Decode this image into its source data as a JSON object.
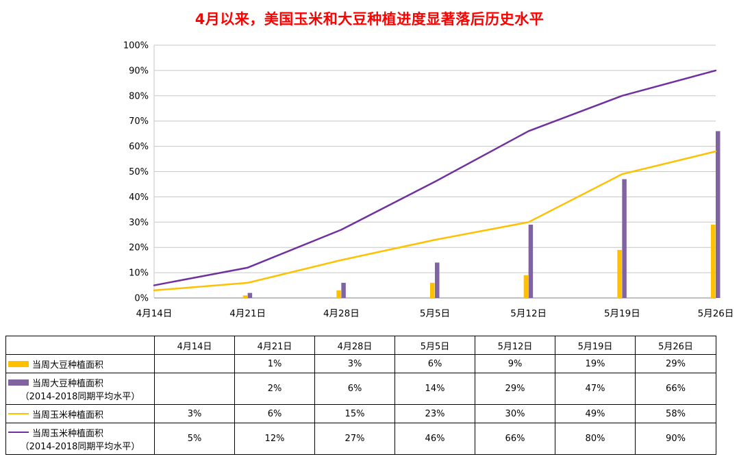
{
  "title": {
    "text": "4月以来，美国玉米和大豆种植进度显著落后历史水平",
    "color": "#FF0000"
  },
  "chart_data": {
    "type": "bar",
    "subtype": "combo-bar-line",
    "categories": [
      "4月14日",
      "4月21日",
      "4月28日",
      "5月5日",
      "5月12日",
      "5月19日",
      "5月26日"
    ],
    "ylim": [
      0,
      100
    ],
    "y_tick_labels": [
      "0%",
      "10%",
      "20%",
      "30%",
      "40%",
      "50%",
      "60%",
      "70%",
      "80%",
      "90%",
      "100%"
    ],
    "grid": true,
    "legend_position": "table-below",
    "series": [
      {
        "name": "当周大豆种植面积",
        "chart_type": "bar",
        "color": "#FFC000",
        "values": [
          null,
          1,
          3,
          6,
          9,
          19,
          29
        ]
      },
      {
        "name": "当周大豆种植面积（2014-2018同期平均水平）",
        "chart_type": "bar",
        "color": "#8064A2",
        "values": [
          null,
          2,
          6,
          14,
          29,
          47,
          66
        ]
      },
      {
        "name": "当周玉米种植面积",
        "chart_type": "line",
        "color": "#FFC000",
        "values": [
          3,
          6,
          15,
          23,
          30,
          49,
          58
        ]
      },
      {
        "name": "当周玉米种植面积（2014-2018同期平均水平）",
        "chart_type": "line",
        "color": "#7030A0",
        "values": [
          5,
          12,
          27,
          46,
          66,
          80,
          90
        ]
      }
    ],
    "colors": {
      "gold": "#FFC000",
      "purple_bar": "#8064A2",
      "purple_line": "#7030A0"
    }
  },
  "table": {
    "header": [
      "",
      "4月14日",
      "4月21日",
      "4月28日",
      "5月5日",
      "5月12日",
      "5月19日",
      "5月26日"
    ],
    "rows": [
      {
        "swatch": "bar",
        "color": "#FFC000",
        "label1": "当周大豆种植面积",
        "label2": "",
        "cells": [
          "",
          "1%",
          "3%",
          "6%",
          "9%",
          "19%",
          "29%"
        ]
      },
      {
        "swatch": "bar",
        "color": "#8064A2",
        "label1": "当周大豆种植面积",
        "label2": "（2014-2018同期平均水平）",
        "cells": [
          "",
          "2%",
          "6%",
          "14%",
          "29%",
          "47%",
          "66%"
        ]
      },
      {
        "swatch": "line",
        "color": "#FFC000",
        "label1": "当周玉米种植面积",
        "label2": "",
        "cells": [
          "3%",
          "6%",
          "15%",
          "23%",
          "30%",
          "49%",
          "58%"
        ]
      },
      {
        "swatch": "line",
        "color": "#7030A0",
        "label1": "当周玉米种植面积",
        "label2": "（2014-2018同期平均水平）",
        "cells": [
          "5%",
          "12%",
          "27%",
          "46%",
          "66%",
          "80%",
          "90%"
        ]
      }
    ]
  }
}
